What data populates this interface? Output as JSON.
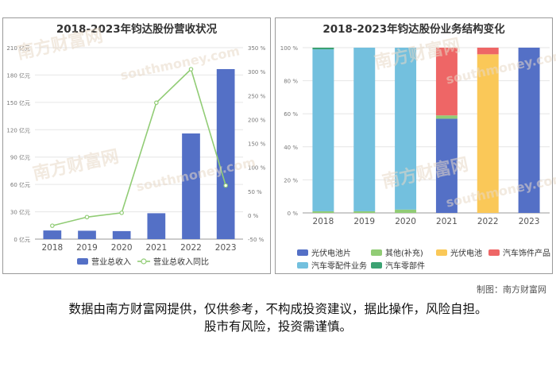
{
  "left_chart": {
    "title": "2018-2023年钧达股份营收状况",
    "chart_data": {
      "type": "bar",
      "categories": [
        "2018",
        "2019",
        "2020",
        "2021",
        "2022",
        "2023"
      ],
      "series": [
        {
          "name": "营业总收入",
          "kind": "bar",
          "axis": "left",
          "color": "#5470c6",
          "values": [
            9.5,
            9.2,
            8.8,
            28.4,
            115.9,
            186.5
          ]
        },
        {
          "name": "营业总收入同比",
          "kind": "line",
          "axis": "right",
          "color": "#91cc75",
          "values": [
            -22,
            -4,
            5,
            235,
            305,
            62
          ]
        }
      ],
      "left_axis": {
        "ylim": [
          0,
          210
        ],
        "ticks": [
          0,
          30,
          60,
          90,
          120,
          150,
          180,
          210
        ],
        "unit": "亿元"
      },
      "right_axis": {
        "ylim": [
          -50,
          350
        ],
        "ticks": [
          -50,
          0,
          50,
          100,
          150,
          200,
          250,
          300,
          350
        ],
        "unit": "%"
      },
      "legend": "bottom"
    }
  },
  "right_chart": {
    "title": "2018-2023年钧达股份业务结构变化",
    "chart_data": {
      "type": "bar",
      "stacked": true,
      "categories": [
        "2018",
        "2019",
        "2020",
        "2021",
        "2022",
        "2023"
      ],
      "series": [
        {
          "name": "光伏电池片",
          "color": "#5470c6",
          "values": [
            0,
            0,
            0,
            57,
            0,
            100
          ]
        },
        {
          "name": "其他(补充)",
          "color": "#91cc75",
          "values": [
            1,
            1,
            2,
            2,
            0,
            0
          ]
        },
        {
          "name": "光伏电池",
          "color": "#fac858",
          "values": [
            0,
            0,
            0,
            0,
            96,
            0
          ]
        },
        {
          "name": "汽车饰件产品",
          "color": "#ee6666",
          "values": [
            0,
            0,
            0,
            41,
            4,
            0
          ]
        },
        {
          "name": "汽车零配件业务",
          "color": "#73c0de",
          "values": [
            98,
            99,
            98,
            0,
            0,
            0
          ]
        },
        {
          "name": "汽车零部件",
          "color": "#3ba272",
          "values": [
            1,
            0,
            0,
            0,
            0,
            0
          ]
        }
      ],
      "ylim": [
        0,
        100
      ],
      "ticks": [
        0,
        20,
        40,
        60,
        80,
        100
      ],
      "unit": "%",
      "legend": "bottom"
    }
  },
  "credit": "制图：南方财富网",
  "disclaimer_line1": "数据由南方财富网提供，仅供参考，不构成投资建议，据此操作，风险自担。",
  "disclaimer_line2": "股市有风险，投资需谨慎。",
  "watermark": "南方财富网",
  "watermark_url": "southmoney.com"
}
